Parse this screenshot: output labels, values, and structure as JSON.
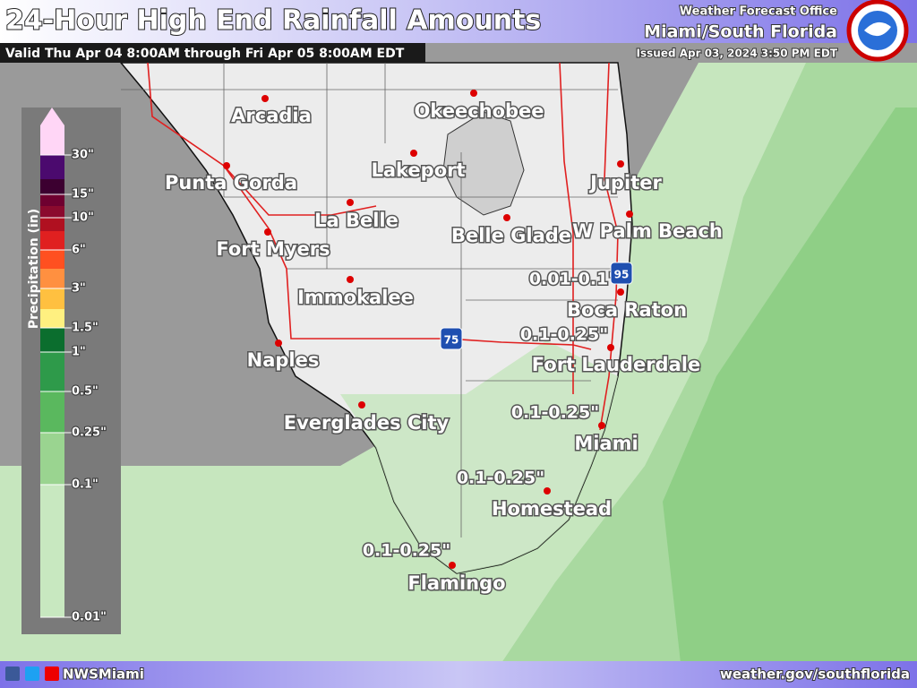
{
  "header": {
    "title": "24-Hour High End Rainfall Amounts",
    "valid": "Valid Thu Apr 04 8:00AM through Fri Apr 05 8:00AM EDT",
    "office": "Weather Forecast Office",
    "office_name": "Miami/South Florida",
    "issued": "Issued Apr 03, 2024 3:50 PM EDT"
  },
  "legend": {
    "title": "Precipitation (in)",
    "labels": [
      "30\"",
      "15\"",
      "10\"",
      "6\"",
      "3\"",
      "1.5\"",
      "1\"",
      "0.5\"",
      "0.25\"",
      "0.1\"",
      "0.01\""
    ]
  },
  "cities": [
    "Arcadia",
    "Okeechobee",
    "Punta Gorda",
    "Lakeport",
    "La Belle",
    "Jupiter",
    "Belle Glade",
    "W Palm Beach",
    "Fort Myers",
    "Immokalee",
    "Boca Raton",
    "Naples",
    "Fort Lauderdale",
    "Everglades City",
    "Miami",
    "Homestead",
    "Flamingo"
  ],
  "amounts": [
    "0.01-0.1\"",
    "0.1-0.25\"",
    "0.1-0.25\"",
    "0.1-0.25\"",
    "0.1-0.25\""
  ],
  "highways": [
    "75",
    "95"
  ],
  "footer": {
    "handle": "NWSMiami",
    "url": "weather.gov/southflorida"
  }
}
